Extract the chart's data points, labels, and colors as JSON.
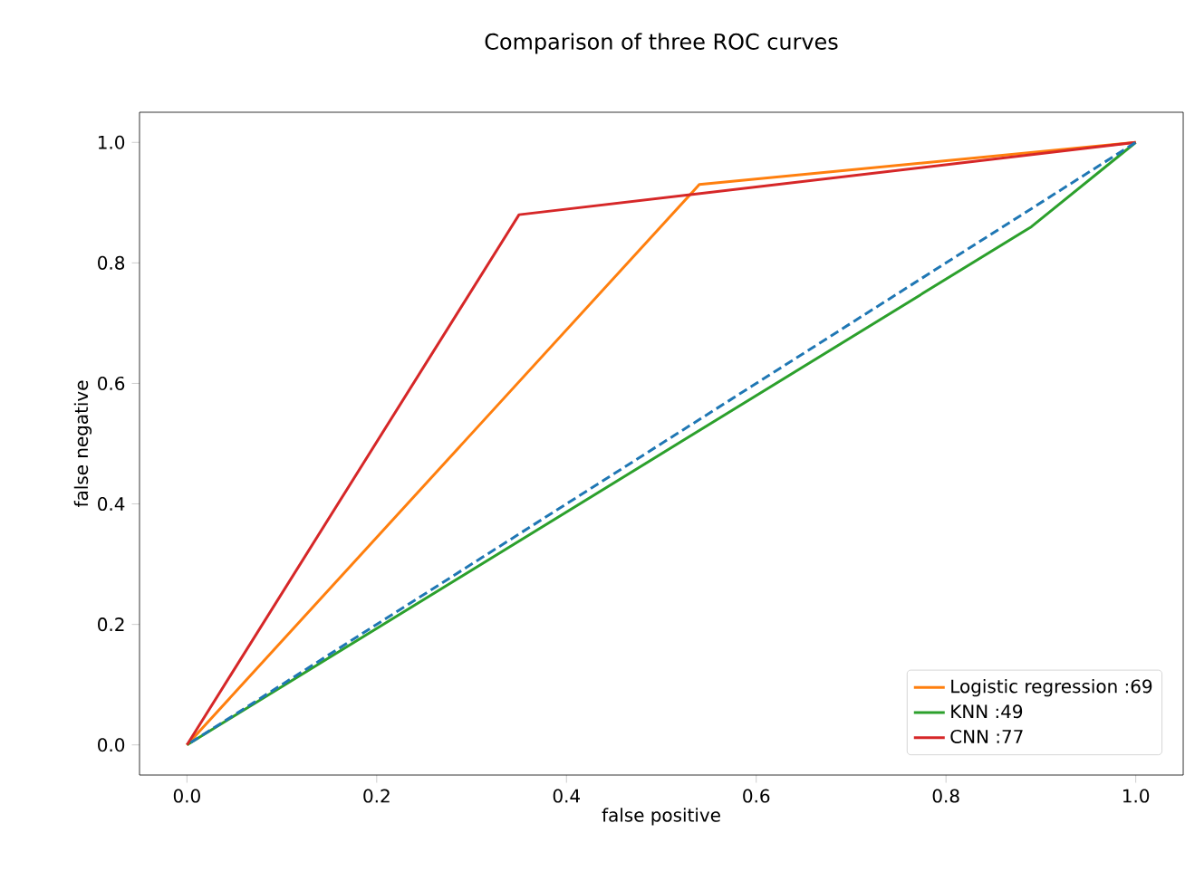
{
  "chart_data": {
    "type": "line",
    "title": "Comparison of three ROC curves",
    "xlabel": "false positive",
    "ylabel": "false negative",
    "xlim": [
      -0.05,
      1.05
    ],
    "ylim": [
      -0.05,
      1.05
    ],
    "xticks": [
      {
        "value": 0,
        "label": "0.0"
      },
      0.2,
      0.4,
      0.6,
      0.8,
      {
        "value": 1,
        "label": "1.0"
      }
    ],
    "yticks": [
      {
        "value": 0,
        "label": "0.0"
      },
      0.2,
      0.4,
      0.6,
      0.8,
      {
        "value": 1,
        "label": "1.0"
      }
    ],
    "grid": false,
    "legend": "bottom right",
    "marker": "none",
    "series": [
      {
        "name": "Logistic regression :69",
        "color": "#ff7f0e",
        "x": [
          0,
          0.54,
          1
        ],
        "values": [
          0,
          0.93,
          1
        ]
      },
      {
        "name": "KNN :49",
        "color": "#2ca02c",
        "x": [
          0,
          0.89,
          1
        ],
        "values": [
          0,
          0.86,
          1
        ]
      },
      {
        "name": "CNN :77",
        "color": "#d62728",
        "x": [
          0,
          0.35,
          1
        ],
        "values": [
          0,
          0.88,
          1
        ]
      },
      {
        "color": "#1f77b4",
        "line_style": "dashed",
        "x": [
          0,
          1
        ],
        "values": [
          0,
          1
        ]
      }
    ]
  }
}
